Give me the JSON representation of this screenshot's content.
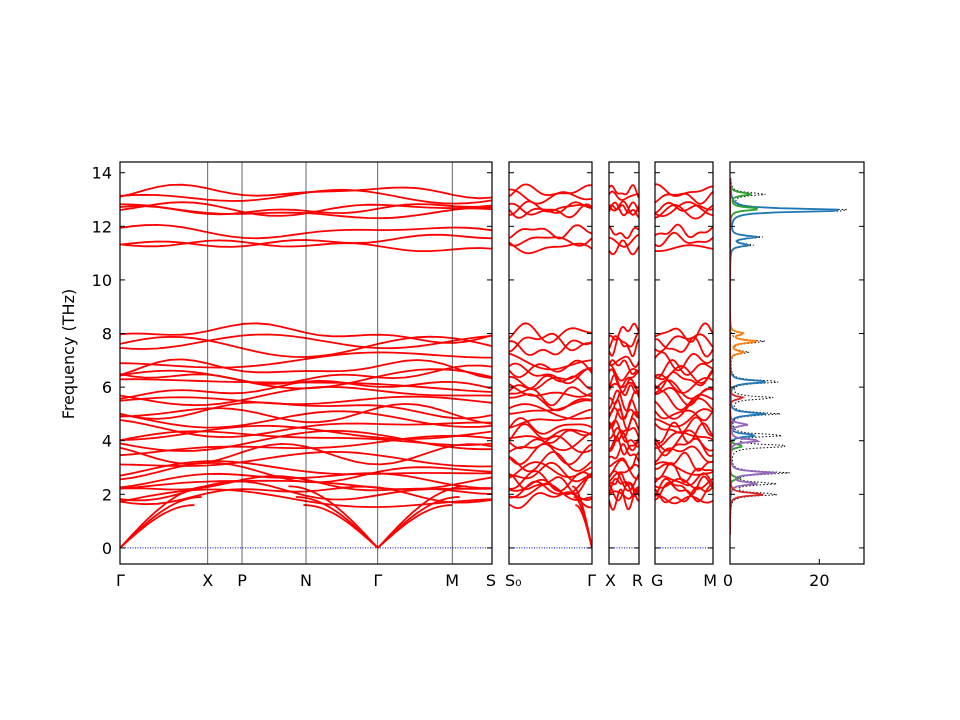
{
  "chart_data": {
    "type": "line",
    "title": "",
    "ylabel": "Frequency (THz)",
    "ylim": [
      -0.6,
      14.4
    ],
    "yticks": [
      0,
      2,
      4,
      6,
      8,
      10,
      12,
      14
    ],
    "line_color": "#ff0000",
    "zero_line_color": "#0000cc",
    "band_panels": [
      {
        "labels": [
          "Γ",
          "X",
          "P",
          "N",
          "Γ",
          "M",
          "S"
        ],
        "path_positions": [
          0,
          0.236,
          0.328,
          0.5,
          0.693,
          0.893,
          1.0
        ],
        "acoustic_zero_points": [
          0.0,
          0.693
        ]
      },
      {
        "labels": [
          "S₀",
          "Γ"
        ],
        "path_positions": [
          0,
          1.0
        ],
        "acoustic_zero_points": [
          1.0
        ]
      },
      {
        "labels": [
          "X",
          "R"
        ],
        "path_positions": [
          0,
          1.0
        ],
        "acoustic_zero_points": []
      },
      {
        "labels": [
          "G",
          "M"
        ],
        "path_positions": [
          0,
          1.0
        ],
        "acoustic_zero_points": []
      }
    ],
    "optical_band_frequencies": [
      1.8,
      2.0,
      2.1,
      2.3,
      2.4,
      2.5,
      2.8,
      2.9,
      3.2,
      3.5,
      3.8,
      4.0,
      4.1,
      4.3,
      4.5,
      4.8,
      5.0,
      5.2,
      5.5,
      5.7,
      5.9,
      6.1,
      6.3,
      6.5,
      6.7,
      7.0,
      7.5,
      7.7,
      8.0,
      11.2,
      11.5,
      11.8,
      12.55,
      12.65,
      12.7,
      13.1,
      13.3
    ],
    "dos": {
      "xlabel": "",
      "xlim": [
        0,
        30
      ],
      "xticks": [
        0,
        20
      ],
      "total_color": "#000000",
      "series": [
        {
          "color": "#1f77b4",
          "peaks": [
            [
              12.6,
              28
            ],
            [
              11.6,
              6
            ],
            [
              11.3,
              4
            ],
            [
              6.2,
              9
            ],
            [
              5.0,
              8
            ],
            [
              4.2,
              6
            ]
          ]
        },
        {
          "color": "#2ca02c",
          "peaks": [
            [
              12.65,
              7
            ],
            [
              13.2,
              5
            ],
            [
              2.6,
              2
            ],
            [
              3.8,
              3
            ]
          ]
        },
        {
          "color": "#ff7f0e",
          "peaks": [
            [
              7.7,
              6
            ],
            [
              8.0,
              3
            ],
            [
              7.3,
              3
            ]
          ]
        },
        {
          "color": "#9467bd",
          "peaks": [
            [
              2.8,
              10
            ],
            [
              2.4,
              6
            ],
            [
              4.0,
              7
            ],
            [
              4.6,
              4
            ]
          ]
        },
        {
          "color": "#d62728",
          "peaks": [
            [
              2.0,
              8
            ],
            [
              5.6,
              3
            ]
          ]
        }
      ],
      "total_peaks": [
        [
          12.6,
          30
        ],
        [
          13.2,
          8
        ],
        [
          11.6,
          7
        ],
        [
          11.3,
          5
        ],
        [
          7.7,
          8
        ],
        [
          7.3,
          4
        ],
        [
          6.2,
          12
        ],
        [
          5.6,
          10
        ],
        [
          5.0,
          11
        ],
        [
          4.2,
          12
        ],
        [
          3.8,
          14
        ],
        [
          2.8,
          13
        ],
        [
          2.4,
          10
        ],
        [
          2.0,
          11
        ]
      ]
    }
  }
}
